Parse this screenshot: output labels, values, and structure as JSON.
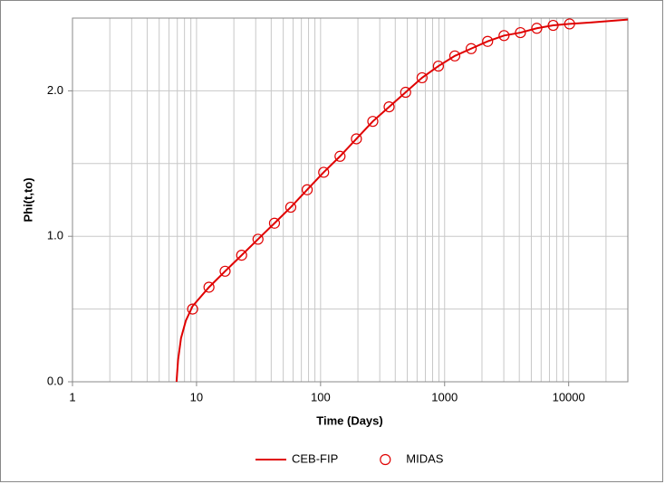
{
  "chart_data": {
    "type": "line",
    "x_label": "Time (Days)",
    "y_label": "Phi(t,to)",
    "xlim": [
      1,
      30000
    ],
    "xticks": [
      1,
      10,
      100,
      1000,
      10000
    ],
    "xlog": true,
    "ylim": [
      0,
      2.5
    ],
    "yticks": [
      {
        "value": 0,
        "label": "0.0"
      },
      {
        "value": 1,
        "label": "1.0"
      },
      {
        "value": 2,
        "label": "2.0"
      }
    ],
    "y_minor_grid": [
      0.5,
      1.5,
      2.5
    ],
    "grid": true,
    "legend": "bottom",
    "series": [
      {
        "name": "CEB-FIP",
        "color": "#e00000",
        "style": "line",
        "x": [
          6.9,
          7.1,
          7.5,
          8.2,
          9.3,
          12.6,
          17.0,
          23.1,
          31.3,
          42.5,
          57.5,
          78.0,
          105.9,
          143.5,
          194.5,
          263.6,
          357,
          485,
          658,
          891,
          1208,
          1637,
          2222,
          3013,
          4083,
          5534,
          7499,
          10170,
          15000,
          30000
        ],
        "values": [
          0,
          0.15,
          0.3,
          0.42,
          0.52,
          0.65,
          0.76,
          0.87,
          0.98,
          1.09,
          1.2,
          1.32,
          1.44,
          1.55,
          1.67,
          1.79,
          1.89,
          1.99,
          2.09,
          2.17,
          2.24,
          2.29,
          2.34,
          2.38,
          2.4,
          2.43,
          2.45,
          2.46,
          2.47,
          2.49
        ]
      },
      {
        "name": "MIDAS",
        "color": "#e00000",
        "style": "marker",
        "x": [
          9.3,
          12.6,
          17.0,
          23.1,
          31.3,
          42.5,
          57.5,
          78.0,
          105.9,
          143.5,
          194.5,
          263.6,
          357,
          485,
          658,
          891,
          1208,
          1637,
          2222,
          3013,
          4083,
          5534,
          7499,
          10170
        ],
        "values": [
          0.5,
          0.65,
          0.76,
          0.87,
          0.98,
          1.09,
          1.2,
          1.32,
          1.44,
          1.55,
          1.67,
          1.79,
          1.89,
          1.99,
          2.09,
          2.17,
          2.24,
          2.29,
          2.34,
          2.38,
          2.4,
          2.43,
          2.45,
          2.46
        ]
      }
    ]
  }
}
